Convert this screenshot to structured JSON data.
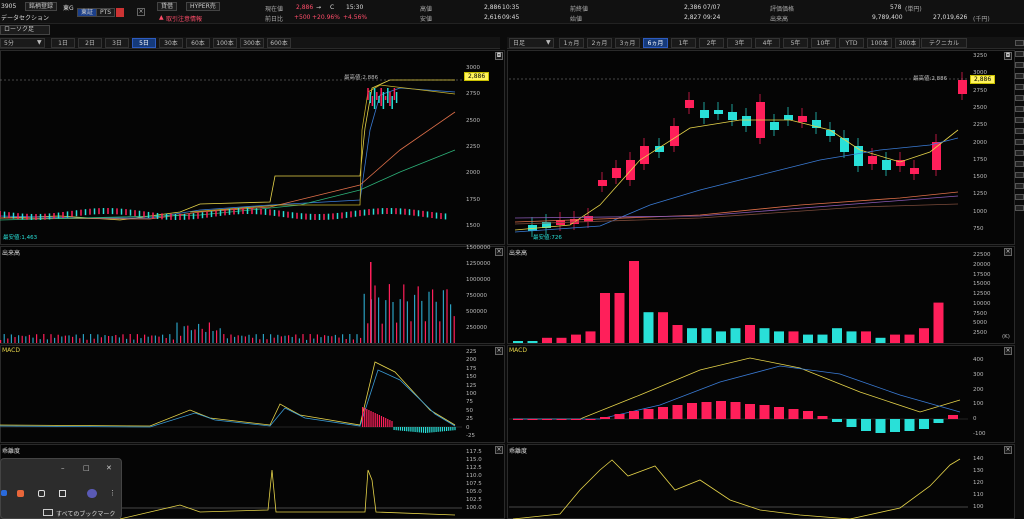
{
  "top": {
    "code": "3905",
    "watch_btn": "銘柄登録",
    "market": "東G",
    "market_tag": "東証",
    "pts": "PTS",
    "company": "データセクション",
    "chart_name": "ローソク足",
    "credit": "貸借",
    "hyper": "HYPER売",
    "warning": "取引注意情報",
    "current_label": "現在値",
    "current_value": "2,886",
    "current_arrow": "→",
    "current_flag": "C",
    "current_time": "15:30",
    "change_label": "前日比",
    "change_value": "+500",
    "change_pct": "+20.96%",
    "change_extra": "+4.56%",
    "high_label": "高値",
    "high_value": "2,886",
    "high_time": "10:35",
    "prev_label": "前終値",
    "prev_value": "2,386",
    "prev_date": "07/07",
    "low_label": "安値",
    "low_value": "2,616",
    "low_time": "09:45",
    "open_label": "始値",
    "open_value": "2,827",
    "open_time": "09:24",
    "vwap_label": "評価価格",
    "vwap_value": "578",
    "vwap_unit": "(単円)",
    "volume_label": "出来高",
    "volume_value": "9,789,400",
    "turnover_value": "27,019,626",
    "turnover_unit": "(千円)"
  },
  "left": {
    "period": "5分",
    "tabs": [
      "1日",
      "2日",
      "3日",
      "5日",
      "30本",
      "60本",
      "100本",
      "300本",
      "600本"
    ],
    "active_tab": "5日",
    "price_tag": "2,886",
    "max_label": "最高値:2,886",
    "min_label": "最安値:1,463",
    "price_ticks": [
      "3000",
      "2750",
      "2500",
      "2250",
      "2000",
      "1750",
      "1500"
    ],
    "volume_title": "出来高",
    "volume_ticks": [
      "1500000",
      "1250000",
      "1000000",
      "750000",
      "500000",
      "250000"
    ],
    "macd_title": "MACD",
    "macd_ticks": [
      "225",
      "200",
      "175",
      "150",
      "125",
      "100",
      "75",
      "50",
      "25",
      "0",
      "-25"
    ],
    "rsi_title": "乖離度",
    "rsi_ticks": [
      "117.5",
      "115.0",
      "112.5",
      "110.0",
      "107.5",
      "105.0",
      "102.5",
      "100.0"
    ]
  },
  "right": {
    "period": "日足",
    "tabs": [
      "1ヵ月",
      "2ヵ月",
      "3ヵ月",
      "6ヵ月",
      "1年",
      "2年",
      "3年",
      "4年",
      "5年",
      "10年",
      "YTD",
      "100本",
      "300本",
      "600本"
    ],
    "active_tab": "6ヵ月",
    "technical": "テクニカル",
    "price_tag": "2,886",
    "max_label": "最高値:2,886",
    "min_label": "最安値:726",
    "price_ticks": [
      "3250",
      "3000",
      "2750",
      "2500",
      "2250",
      "2000",
      "1750",
      "1500",
      "1250",
      "1000",
      "750"
    ],
    "volume_title": "出来高",
    "volume_unit": "(K)",
    "volume_ticks": [
      "22500",
      "20000",
      "17500",
      "15000",
      "12500",
      "10000",
      "7500",
      "5000",
      "2500"
    ],
    "macd_title": "MACD",
    "macd_ticks": [
      "400",
      "300",
      "200",
      "100",
      "0",
      "-100"
    ],
    "rsi_title": "乖離度",
    "rsi_ticks": [
      "140",
      "130",
      "120",
      "110",
      "100"
    ]
  },
  "popup": {
    "bookmark_label": "すべてのブックマーク"
  },
  "colors": {
    "up": "#ff1f5a",
    "down": "#29e0d8",
    "accent": "#fff35c",
    "ma5": "#e6d44a",
    "ma25": "#3a7bd5",
    "ma75": "#e0704a"
  }
}
